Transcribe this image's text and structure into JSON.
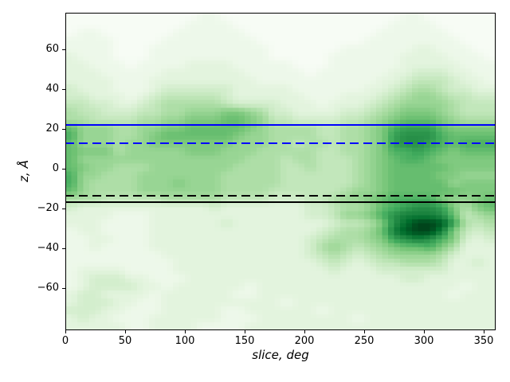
{
  "figure": {
    "background": "#ffffff",
    "frame_color": "#000000"
  },
  "chart_data": {
    "type": "heatmap",
    "title": "",
    "xlabel": "slice, deg",
    "ylabel": "z, Å",
    "xlim": [
      0,
      360
    ],
    "ylim": [
      -81.2,
      78.4
    ],
    "grid": false,
    "legend": "none",
    "xticks": [
      {
        "v": 0,
        "label": "0"
      },
      {
        "v": 50,
        "label": "50"
      },
      {
        "v": 100,
        "label": "100"
      },
      {
        "v": 150,
        "label": "150"
      },
      {
        "v": 200,
        "label": "200"
      },
      {
        "v": 250,
        "label": "250"
      },
      {
        "v": 300,
        "label": "300"
      },
      {
        "v": 350,
        "label": "350"
      }
    ],
    "yticks": [
      {
        "v": 60,
        "label": "60"
      },
      {
        "v": 40,
        "label": "40"
      },
      {
        "v": 20,
        "label": "20"
      },
      {
        "v": 0,
        "label": "0"
      },
      {
        "v": -20,
        "label": "−20"
      },
      {
        "v": -40,
        "label": "−40"
      },
      {
        "v": -60,
        "label": "−60"
      }
    ],
    "hlines": [
      {
        "name": "hline-solid-blue",
        "z": 22,
        "color": "#0000ff",
        "style": "solid",
        "width": 2
      },
      {
        "name": "hline-dashed-blue",
        "z": 13,
        "color": "#0000ff",
        "style": "dashed",
        "width": 2
      },
      {
        "name": "hline-dashed-black",
        "z": -13.6,
        "color": "#000000",
        "style": "dashed",
        "width": 2
      },
      {
        "name": "hline-solid-black",
        "z": -16.8,
        "color": "#000000",
        "style": "solid",
        "width": 2
      }
    ],
    "colormap": {
      "name": "Greens",
      "stops": [
        {
          "t": 0.0,
          "color": "#f7fcf5"
        },
        {
          "t": 0.125,
          "color": "#e5f5e0"
        },
        {
          "t": 0.25,
          "color": "#c7e9c0"
        },
        {
          "t": 0.375,
          "color": "#a1d99b"
        },
        {
          "t": 0.5,
          "color": "#74c476"
        },
        {
          "t": 0.625,
          "color": "#41ab5d"
        },
        {
          "t": 0.75,
          "color": "#238b45"
        },
        {
          "t": 0.875,
          "color": "#006d2c"
        },
        {
          "t": 1.0,
          "color": "#00441b"
        }
      ]
    },
    "heatmap": {
      "x_bin_deg": 10,
      "z_bin_angstrom": 4,
      "rows_top_to_bottom": true,
      "z_top": 78.4,
      "z_bottom": -81.2,
      "value_encoding": "hex digit 0-f = relative density 0-1",
      "rows": [
        "000000000001100000000000000011000000",
        "000000000011110000000000000111100000",
        "011000000111111000000000001111110000",
        "111100001111111100000000011111111000",
        "111100011111111110000001111112211100",
        "211100011111111110000011111122221110",
        "221110111122221111100011111122222111",
        "222111112222222111110111111223332211",
        "222211122222222211111111112234443221",
        "322211123333332222211111122345543322",
        "332221234444432222221112223456654433",
        "443322345555543333222122234566665444",
        "544333445566677653322223345677765444",
        "554444556677788764433334456788876555",
        "8666556677888887655554455679aaa87777",
        "966655678888887665555445567abbb98888",
        "866656677777776665545545567abba98999",
        "87775666667776665555544556799a987888",
        "866666666666666555455444567899877777",
        "876655566666665555445444567888887777",
        "966555666666655555444444567888877666",
        "965555666766655555444444567888886777",
        "865555666666655554444445667888888777",
        "555444445555544443334456678999976678",
        "3222222222223222222233455689abba7578",
        "222211122222222222223346679bcccb8456",
        "222111122222232222222234457bdffea545",
        "122111122222222222222345568ceffc7434",
        "112211122222222222223455567abcb97323",
        "112111122222222222223565456788975222",
        "111111112222222222223454345666653222",
        "111111111222222222222343234455542232",
        "122221111222222222222232223333332222",
        "123332211122222222222222222233222222",
        "123333221222222122222222222222222122",
        "233222212222221122222222222222221222",
        "233322112222222222122222222222222222",
        "333221112222211222222122222222222222",
        "232211122222211122222222122222222222",
        "222221122221111222222222222222222222"
      ]
    }
  }
}
